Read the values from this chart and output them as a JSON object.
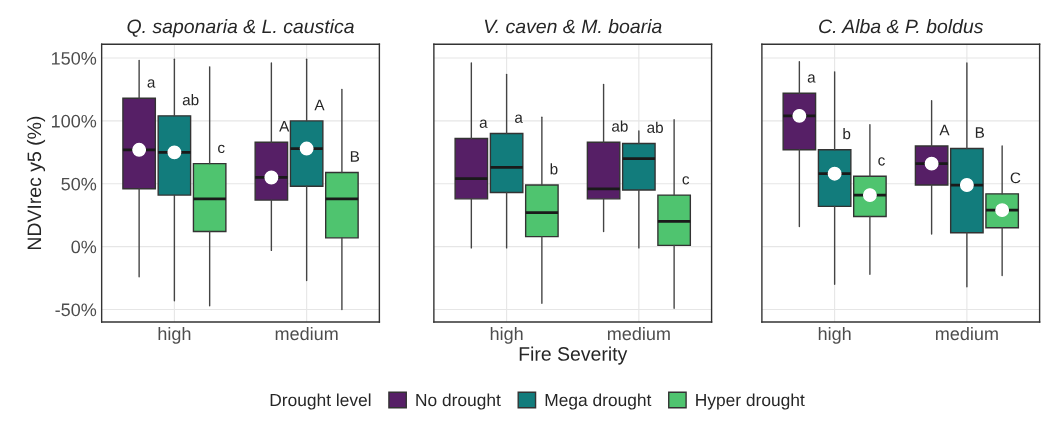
{
  "chart_data": [
    {
      "type": "box",
      "title": "Q. saponaria & L. caustica",
      "ylabel": "NDVIrec y5 (%)",
      "categories": [
        "high",
        "medium"
      ],
      "ylim": [
        -60,
        161
      ],
      "yticks": [
        {
          "value": -50,
          "label": "-50%"
        },
        {
          "value": 0,
          "label": "0%"
        },
        {
          "value": 50,
          "label": "50%"
        },
        {
          "value": 100,
          "label": "100%"
        },
        {
          "value": 150,
          "label": "150%"
        }
      ],
      "grid": true,
      "legend": "bottom",
      "legend_title": "Drought level",
      "marker": "circle",
      "series": [
        {
          "name": "No drought",
          "color": "#561f66",
          "boxes": [
            {
              "low": -24,
              "q1": 46,
              "median": 77,
              "q3": 118,
              "high": 148,
              "mean": 77
            },
            {
              "low": -3,
              "q1": 37,
              "median": 55,
              "q3": 83,
              "high": 146,
              "mean": 55
            }
          ]
        },
        {
          "name": "Mega drought",
          "color": "#127c7c",
          "boxes": [
            {
              "low": -43,
              "q1": 41,
              "median": 75,
              "q3": 104,
              "high": 149,
              "mean": 75
            },
            {
              "low": -27,
              "q1": 48,
              "median": 78,
              "q3": 100,
              "high": 149,
              "mean": 78
            }
          ]
        },
        {
          "name": "Hyper drought",
          "color": "#4fc46f",
          "boxes": [
            {
              "low": -47,
              "q1": 12,
              "median": 38,
              "q3": 66,
              "high": 143
            },
            {
              "low": -50,
              "q1": 7,
              "median": 38,
              "q3": 59,
              "high": 125
            }
          ]
        }
      ],
      "annotations": [
        "a",
        "ab",
        "c",
        "A",
        "A",
        "B"
      ]
    },
    {
      "type": "box",
      "title": "V. caven & M. boaria",
      "xlabel": "Fire Severity",
      "categories": [
        "high",
        "medium"
      ],
      "ylim": [
        -60,
        161
      ],
      "yticks": [
        -50,
        0,
        50,
        100,
        150
      ],
      "tick_labels": "x",
      "grid": true,
      "series": [
        {
          "color": "#561f66",
          "boxes": [
            {
              "low": -1,
              "q1": 38,
              "median": 54,
              "q3": 86,
              "high": 146
            },
            {
              "low": 12,
              "q1": 38,
              "median": 46,
              "q3": 83,
              "high": 129
            }
          ]
        },
        {
          "color": "#127c7c",
          "boxes": [
            {
              "low": -1,
              "q1": 43,
              "median": 63,
              "q3": 90,
              "high": 137
            },
            {
              "low": -1,
              "q1": 45,
              "median": 70,
              "q3": 82,
              "high": 92
            }
          ]
        },
        {
          "color": "#4fc46f",
          "boxes": [
            {
              "low": -45,
              "q1": 8,
              "median": 27,
              "q3": 49,
              "high": 103
            },
            {
              "low": -49,
              "q1": 1,
              "median": 20,
              "q3": 41,
              "high": 101
            }
          ]
        }
      ],
      "annotations": [
        "a",
        "a",
        "b",
        "ab",
        "ab",
        "c"
      ]
    },
    {
      "type": "box",
      "title": "C. Alba & P. boldus",
      "categories": [
        "high",
        "medium"
      ],
      "ylim": [
        -60,
        161
      ],
      "yticks": [
        -50,
        0,
        50,
        100,
        150
      ],
      "tick_labels": "x",
      "grid": true,
      "marker": "circle",
      "series": [
        {
          "color": "#561f66",
          "boxes": [
            {
              "low": 16,
              "q1": 77,
              "median": 104,
              "q3": 122,
              "high": 147,
              "mean": 104
            },
            {
              "low": 10,
              "q1": 49,
              "median": 66,
              "q3": 80,
              "high": 116,
              "mean": 66
            }
          ]
        },
        {
          "color": "#127c7c",
          "boxes": [
            {
              "low": -30,
              "q1": 32,
              "median": 58,
              "q3": 77,
              "high": 139,
              "mean": 58
            },
            {
              "low": -32,
              "q1": 11,
              "median": 49,
              "q3": 78,
              "high": 146,
              "mean": 49
            }
          ]
        },
        {
          "color": "#4fc46f",
          "boxes": [
            {
              "low": -22,
              "q1": 24,
              "median": 41,
              "q3": 56,
              "high": 97,
              "mean": 41
            },
            {
              "low": -23,
              "q1": 15,
              "median": 29,
              "q3": 42,
              "high": 80,
              "mean": 29
            }
          ]
        }
      ],
      "annotations": [
        "a",
        "b",
        "c",
        "A",
        "B",
        "C"
      ]
    }
  ]
}
